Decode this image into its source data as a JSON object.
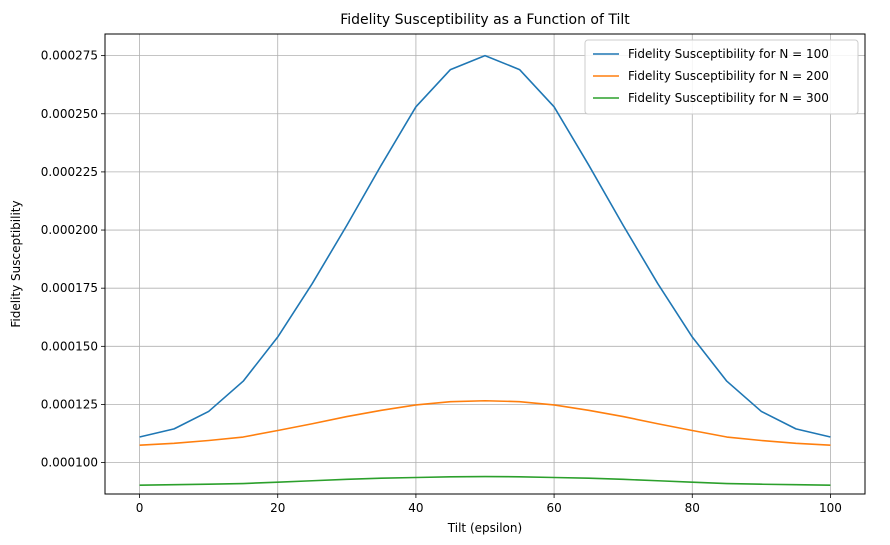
{
  "chart_data": {
    "type": "line",
    "title": "Fidelity Susceptibility as a Function of Tilt",
    "xlabel": "Tilt (epsilon)",
    "ylabel": "Fidelity Susceptibility",
    "xlim": [
      -5,
      105
    ],
    "ylim": [
      8.65e-05,
      0.0002843
    ],
    "xticks": [
      0,
      20,
      40,
      60,
      80,
      100
    ],
    "xtick_labels": [
      "0",
      "20",
      "40",
      "60",
      "80",
      "100"
    ],
    "yticks": [
      0.0001,
      0.000125,
      0.00015,
      0.000175,
      0.0002,
      0.000225,
      0.00025,
      0.000275
    ],
    "ytick_labels": [
      "0.000100",
      "0.000125",
      "0.000150",
      "0.000175",
      "0.000200",
      "0.000225",
      "0.000250",
      "0.000275"
    ],
    "grid": true,
    "legend_position": "top-right",
    "x": [
      0,
      5,
      10,
      15,
      20,
      25,
      30,
      35,
      40,
      45,
      50,
      55,
      60,
      65,
      70,
      75,
      80,
      85,
      90,
      95,
      100
    ],
    "series": [
      {
        "name": "Fidelity Susceptibility for N = 100",
        "color": "#1f77b4",
        "values": [
          0.000111,
          0.0001145,
          0.000122,
          0.000135,
          0.000154,
          0.000177,
          0.000202,
          0.000228,
          0.000253,
          0.000269,
          0.000275,
          0.000269,
          0.000253,
          0.000228,
          0.000202,
          0.000177,
          0.000154,
          0.000135,
          0.000122,
          0.0001145,
          0.000111
        ]
      },
      {
        "name": "Fidelity Susceptibility for N = 200",
        "color": "#ff7f0e",
        "values": [
          0.0001075,
          0.0001083,
          0.0001095,
          0.000111,
          0.0001138,
          0.0001167,
          0.0001198,
          0.0001225,
          0.0001248,
          0.0001262,
          0.0001266,
          0.0001262,
          0.0001248,
          0.0001225,
          0.0001198,
          0.0001167,
          0.0001138,
          0.000111,
          0.0001095,
          0.0001083,
          0.0001075
        ]
      },
      {
        "name": "Fidelity Susceptibility for N = 300",
        "color": "#2ca02c",
        "values": [
          9.03e-05,
          9.05e-05,
          9.07e-05,
          9.1e-05,
          9.16e-05,
          9.22e-05,
          9.28e-05,
          9.33e-05,
          9.36e-05,
          9.39e-05,
          9.4e-05,
          9.39e-05,
          9.36e-05,
          9.33e-05,
          9.28e-05,
          9.22e-05,
          9.16e-05,
          9.1e-05,
          9.07e-05,
          9.05e-05,
          9.03e-05
        ]
      }
    ]
  }
}
